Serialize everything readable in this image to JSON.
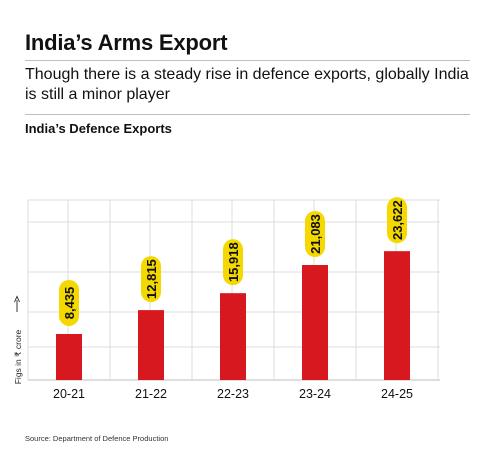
{
  "header": {
    "title": "India’s Arms Export",
    "subtitle": "Though there is a steady rise in defence exports, globally India is still a minor player"
  },
  "chart_data": {
    "type": "bar",
    "title": "India’s Defence Exports",
    "ylabel": "Figs in ₹ crore",
    "xlabel": "",
    "categories": [
      "20-21",
      "21-22",
      "22-23",
      "23-24",
      "24-25"
    ],
    "values": [
      8435,
      12815,
      15918,
      21083,
      23622
    ],
    "value_labels": [
      "8,435",
      "12,815",
      "15,918",
      "21,083",
      "23,622"
    ],
    "ylim": [
      0,
      33000
    ],
    "grid": true,
    "bar_color": "#d7191f",
    "label_badge_color": "#f5d800"
  },
  "footer": {
    "source": "Source: Department of Defence Production"
  }
}
